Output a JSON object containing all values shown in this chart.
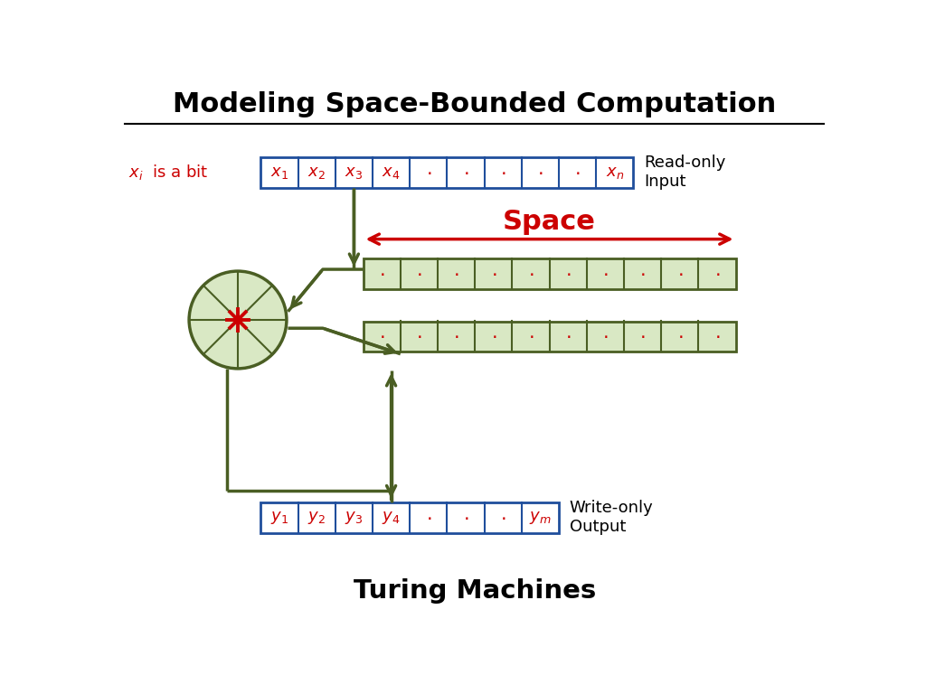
{
  "title": "Modeling Space-Bounded Computation",
  "subtitle": "Turing Machines",
  "bg_color": "#ffffff",
  "title_color": "#000000",
  "dark_green": "#4a5e23",
  "cell_green_fill": "#d9e8c4",
  "cell_green_border": "#4a5e23",
  "blue_border": "#1f4e9c",
  "blue_fill": "#ffffff",
  "red_color": "#cc0000",
  "input_tape_labels": [
    "x_1",
    "x_2",
    "x_3",
    "x_4",
    ".",
    ".",
    ".",
    ".",
    ".",
    "x_n"
  ],
  "work_tape_dots": 10,
  "output_tape_labels": [
    "y_1",
    "y_2",
    "y_3",
    "y_4",
    ".",
    ".",
    ".",
    "y_m"
  ],
  "read_only_label": "Read-only\nInput",
  "write_only_label": "Write-only\nOutput",
  "space_label": "Space"
}
